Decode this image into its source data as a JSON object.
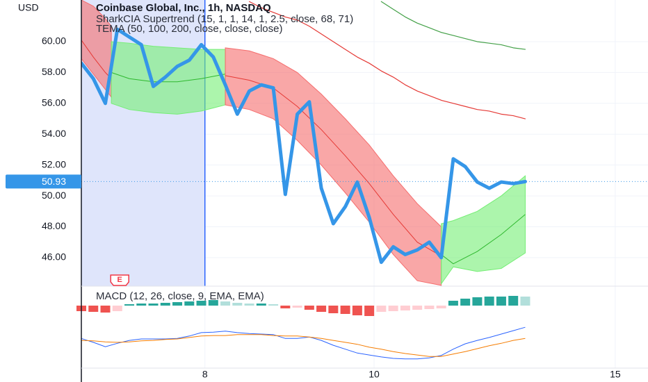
{
  "chart_data": {
    "type": "line",
    "title": "Coinbase Global, Inc., 1h, NASDAQ",
    "indicators": [
      "SharkCIA Supertrend (15, 1, 1, 14, 1, 2.5, close, 68, 71)",
      "TEMA (50, 100, 200, close, close, close)"
    ],
    "y_axis_label": "USD",
    "x": [
      0,
      1,
      2,
      3,
      4,
      5,
      6,
      7,
      8,
      9,
      10,
      11,
      12,
      13,
      14,
      15,
      16,
      17,
      18,
      19,
      20,
      21,
      22,
      23,
      24,
      25,
      26,
      27,
      28,
      29,
      30,
      31,
      32,
      33,
      34,
      35,
      36,
      37
    ],
    "xlim": [
      0,
      47
    ],
    "xticks": [
      {
        "value": 10.3,
        "label": "8"
      },
      {
        "value": 24.4,
        "label": "10"
      },
      {
        "value": 44.5,
        "label": "15"
      }
    ],
    "ylim": [
      44.15,
      62.7
    ],
    "yticks": [
      {
        "value": 46,
        "label": "46.00"
      },
      {
        "value": 48,
        "label": "48.00"
      },
      {
        "value": 50,
        "label": "50.00"
      },
      {
        "value": 52,
        "label": "52.00"
      },
      {
        "value": 54,
        "label": "54.00"
      },
      {
        "value": 56,
        "label": "56.00"
      },
      {
        "value": 58,
        "label": "58.00"
      },
      {
        "value": 60,
        "label": "60.00"
      }
    ],
    "grid": true,
    "series": [
      {
        "color": "#3596e8",
        "values": [
          58.6,
          57.6,
          56.0,
          60.8,
          60.3,
          59.8,
          57.1,
          57.7,
          58.4,
          58.8,
          59.8,
          59.0,
          57.2,
          55.3,
          56.8,
          57.2,
          57.0,
          50.1,
          55.3,
          56.1,
          50.5,
          48.2,
          49.3,
          50.9,
          48.6,
          45.7,
          46.7,
          46.2,
          46.5,
          47.0,
          46.0,
          52.4,
          51.9,
          50.9,
          50.5,
          50.9,
          50.8,
          50.93
        ]
      },
      {
        "color": "#e53935",
        "values": [
          null,
          null,
          null,
          null,
          null,
          null,
          null,
          null,
          null,
          null,
          null,
          null,
          null,
          null,
          62.6,
          62.2,
          61.9,
          61.6,
          61.4,
          61.0,
          60.5,
          60.0,
          59.5,
          59.0,
          58.6,
          58.1,
          57.7,
          57.2,
          56.8,
          56.5,
          56.2,
          56.0,
          55.8,
          55.6,
          55.5,
          55.3,
          55.2,
          55.0
        ]
      },
      {
        "color": "#43a047",
        "values": [
          null,
          null,
          null,
          null,
          null,
          null,
          null,
          null,
          null,
          null,
          null,
          null,
          null,
          null,
          null,
          null,
          null,
          null,
          null,
          null,
          null,
          null,
          null,
          null,
          null,
          62.6,
          62.1,
          61.6,
          61.2,
          60.9,
          60.6,
          60.4,
          60.2,
          60.0,
          59.9,
          59.8,
          59.6,
          59.5
        ]
      }
    ],
    "bands": [
      {
        "color": "#f56c6c",
        "line_color": "#e53935",
        "x": [
          0,
          1,
          2,
          2.5
        ],
        "upper": [
          62.7,
          62.3,
          61.5,
          61.0
        ],
        "lower": [
          58.9,
          57.9,
          56.9,
          56.4
        ],
        "center": [
          60.1,
          59.0,
          58.0,
          57.6
        ]
      },
      {
        "color": "#74ee74",
        "line_color": "#2eb82e",
        "x": [
          2.5,
          4,
          6,
          8,
          10,
          12
        ],
        "upper": [
          60.0,
          59.9,
          59.7,
          59.6,
          59.5,
          59.5
        ],
        "lower": [
          56.0,
          55.6,
          55.4,
          55.3,
          55.5,
          55.9
        ],
        "center": [
          58.0,
          57.6,
          57.4,
          57.4,
          57.6,
          57.9
        ]
      },
      {
        "color": "#f56c6c",
        "line_color": "#e53935",
        "x": [
          12,
          14,
          16,
          18,
          20,
          22,
          24,
          26,
          28,
          30
        ],
        "upper": [
          59.6,
          59.4,
          58.9,
          58.0,
          56.6,
          55.0,
          53.3,
          51.3,
          49.5,
          48.0
        ],
        "lower": [
          55.9,
          55.6,
          55.0,
          53.6,
          52.0,
          50.2,
          48.3,
          46.2,
          44.5,
          44.2
        ],
        "center": [
          57.8,
          57.5,
          57.0,
          55.8,
          54.3,
          52.6,
          50.8,
          48.8,
          47.0,
          46.1
        ]
      },
      {
        "color": "#74ee74",
        "line_color": "#2eb82e",
        "x": [
          30,
          31,
          33,
          35,
          37
        ],
        "upper": [
          48.2,
          48.4,
          49.0,
          50.0,
          51.3
        ],
        "lower": [
          44.3,
          45.4,
          45.1,
          45.3,
          46.3
        ],
        "center": [
          46.2,
          45.6,
          46.4,
          47.5,
          48.8
        ]
      }
    ],
    "earnings": {
      "label": "E",
      "x": 3.2
    },
    "macd": {
      "title": "MACD (12, 26, close, 9, EMA, EMA)",
      "hist_lim": [
        -20,
        20
      ],
      "hist_colors": {
        "up_grow": "#26a69a",
        "up_fall": "#b2dfdb",
        "down_grow": "#ef5350",
        "down_fall": "#ffcdd2"
      },
      "histogram": [
        -8,
        -9,
        -10,
        -8,
        2,
        3,
        3,
        4,
        5,
        6,
        7,
        8,
        6,
        4,
        3,
        3,
        2,
        -4,
        -3,
        -6,
        -9,
        -11,
        -12,
        -14,
        -15,
        -9,
        -8,
        -7,
        -6,
        -5,
        -4,
        7,
        10,
        12,
        13,
        13,
        14,
        13
      ],
      "ylim": [
        0,
        10
      ],
      "lines": [
        {
          "color": "#2962ff",
          "values": [
            6.1,
            5.3,
            4.4,
            5.1,
            5.7,
            6.0,
            6.0,
            6.0,
            6.1,
            6.6,
            7.3,
            7.4,
            7.6,
            7.3,
            7.1,
            7.0,
            6.9,
            6.1,
            6.1,
            6.4,
            5.7,
            4.7,
            3.9,
            3.1,
            2.7,
            2.3,
            2.0,
            1.9,
            1.9,
            2.1,
            2.6,
            3.9,
            5.0,
            5.7,
            6.3,
            7.0,
            7.7,
            8.4
          ]
        },
        {
          "color": "#f57c00",
          "values": [
            5.7,
            5.6,
            5.4,
            5.3,
            5.4,
            5.6,
            5.7,
            5.9,
            6.0,
            6.3,
            6.6,
            6.7,
            6.7,
            6.9,
            6.9,
            6.9,
            6.7,
            6.6,
            6.6,
            6.4,
            6.1,
            5.7,
            5.3,
            4.9,
            4.3,
            3.9,
            3.4,
            3.0,
            2.7,
            2.4,
            2.4,
            2.9,
            3.4,
            4.0,
            4.6,
            5.1,
            5.7,
            6.1
          ]
        }
      ]
    }
  }
}
